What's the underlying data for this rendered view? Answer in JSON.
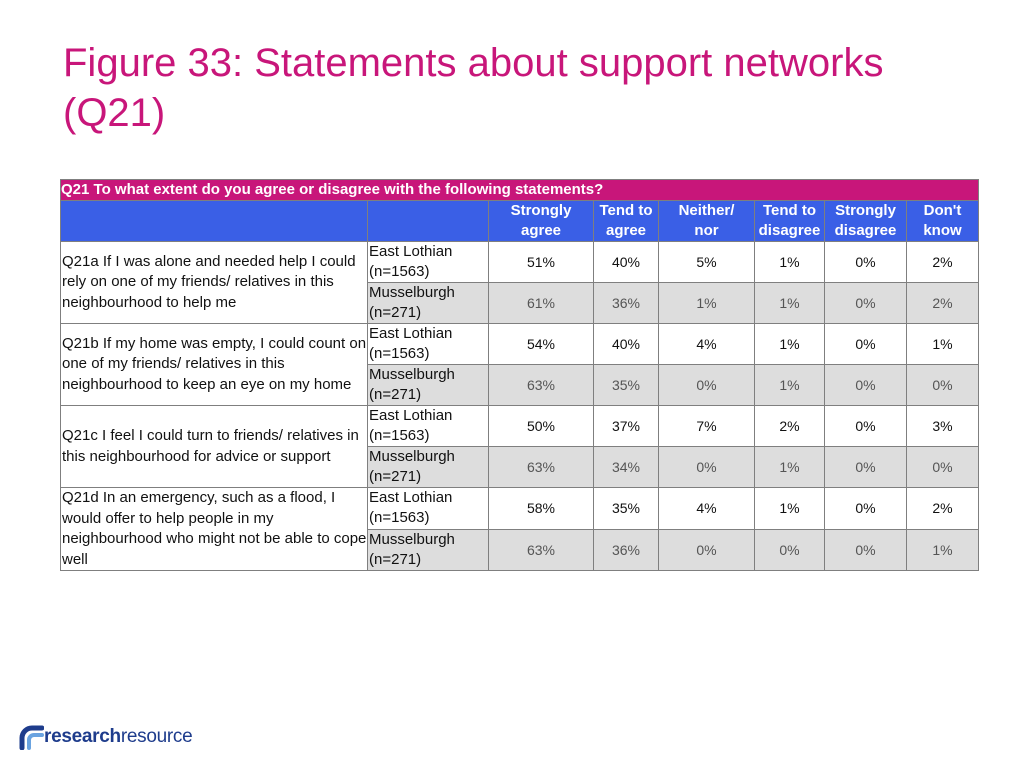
{
  "title": "Figure 33: Statements about support networks (Q21)",
  "table": {
    "question": "Q21 To what extent do you agree or disagree with the following statements?",
    "columns": [
      [
        "Strongly",
        "agree"
      ],
      [
        "Tend to",
        "agree"
      ],
      [
        "Neither/",
        "nor"
      ],
      [
        "Tend to",
        "disagree"
      ],
      [
        "Strongly",
        "disagree"
      ],
      [
        "Don't",
        "know"
      ]
    ],
    "statements": [
      {
        "text": "Q21a If I was alone and needed help I could rely on one of my friends/ relatives in this neighbourhood to help me",
        "rows": [
          {
            "area": [
              "East Lothian",
              "(n=1563)"
            ],
            "values": [
              "51%",
              "40%",
              "5%",
              "1%",
              "0%",
              "2%"
            ]
          },
          {
            "area": [
              "Musselburgh",
              "(n=271)"
            ],
            "values": [
              "61%",
              "36%",
              "1%",
              "1%",
              "0%",
              "2%"
            ]
          }
        ]
      },
      {
        "text": "Q21b If my home was empty, I could count on one of my friends/ relatives in this neighbourhood to keep an eye on my home",
        "rows": [
          {
            "area": [
              "East Lothian",
              "(n=1563)"
            ],
            "values": [
              "54%",
              "40%",
              "4%",
              "1%",
              "0%",
              "1%"
            ]
          },
          {
            "area": [
              "Musselburgh",
              "(n=271)"
            ],
            "values": [
              "63%",
              "35%",
              "0%",
              "1%",
              "0%",
              "0%"
            ]
          }
        ]
      },
      {
        "text": "Q21c I feel I could turn to friends/ relatives in this neighbourhood for advice or support",
        "rows": [
          {
            "area": [
              "East Lothian",
              "(n=1563)"
            ],
            "values": [
              "50%",
              "37%",
              "7%",
              "2%",
              "0%",
              "3%"
            ]
          },
          {
            "area": [
              "Musselburgh",
              "(n=271)"
            ],
            "values": [
              "63%",
              "34%",
              "0%",
              "1%",
              "0%",
              "0%"
            ]
          }
        ]
      },
      {
        "text": "Q21d In an emergency, such as a flood, I would offer to help people in my neighbourhood who might not be able to cope well",
        "rows": [
          {
            "area": [
              "East Lothian",
              "(n=1563)"
            ],
            "values": [
              "58%",
              "35%",
              "4%",
              "1%",
              "0%",
              "2%"
            ]
          },
          {
            "area": [
              "Musselburgh",
              "(n=271)"
            ],
            "values": [
              "63%",
              "36%",
              "0%",
              "0%",
              "0%",
              "1%"
            ]
          }
        ]
      }
    ]
  },
  "logo": {
    "bold": "research",
    "regular": "resource"
  },
  "colors": {
    "title": "#c8167a",
    "question_bar": "#c8167a",
    "header": "#3a5fe6",
    "shade": "#dddddd",
    "logo": "#1e3c8c"
  }
}
